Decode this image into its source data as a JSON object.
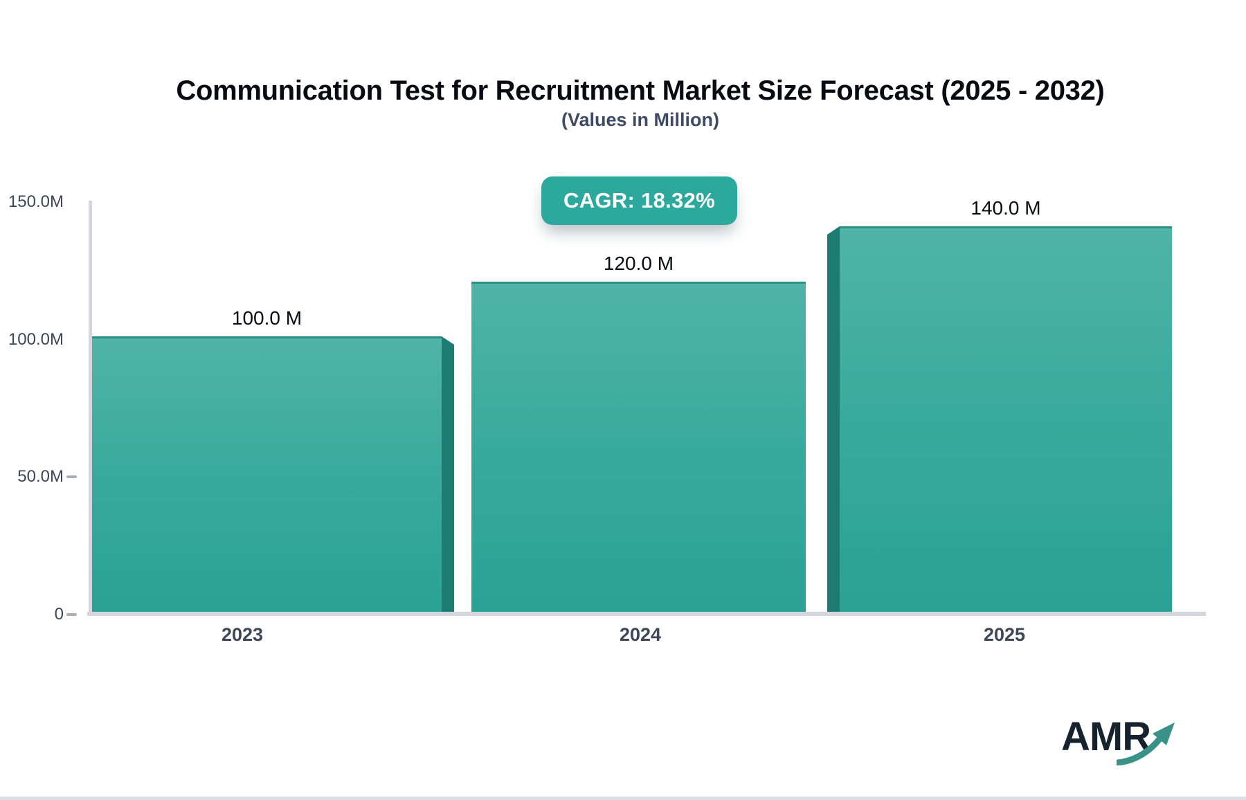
{
  "header": {
    "title": "Communication Test for Recruitment Market Size Forecast (2025 - 2032)",
    "subtitle": "(Values in Million)"
  },
  "cagr_badge": {
    "label": "CAGR: 18.32%",
    "background_color": "#2ca99c",
    "text_color": "#ffffff"
  },
  "chart_data": {
    "type": "bar",
    "title": "Communication Test for Recruitment Market Size Forecast (2025 - 2032)",
    "subtitle": "(Values in Million)",
    "categories": [
      "2023",
      "2024",
      "2025"
    ],
    "values": [
      100.0,
      120.0,
      140.0
    ],
    "value_labels": [
      "100.0 M",
      "120.0 M",
      "140.0 M"
    ],
    "unit": "Million",
    "xlabel": "",
    "ylabel": "",
    "ylim": [
      0,
      150
    ],
    "y_ticks": [
      {
        "value": 150,
        "label": "150.0M"
      },
      {
        "value": 100,
        "label": "100.0M"
      },
      {
        "value": 50,
        "label": "50.0M"
      },
      {
        "value": 0,
        "label": "0"
      }
    ],
    "grid": false,
    "legend_position": "none",
    "bar_color_top": "#50b4a7",
    "bar_color_bottom": "#29a295",
    "bar_side_3d_color": "#1e7b72",
    "axis_color": "#d3d6dc",
    "label_color": "#3d4757"
  },
  "logo": {
    "text": "AMR",
    "text_color": "#16232e",
    "arrow_color": "#399188"
  }
}
